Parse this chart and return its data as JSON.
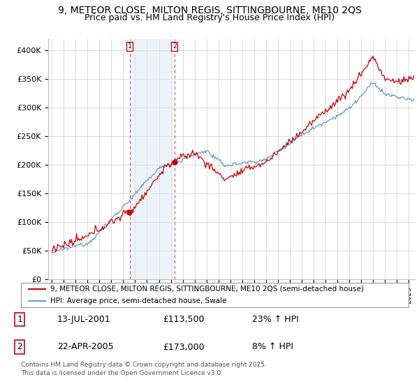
{
  "title": "9, METEOR CLOSE, MILTON REGIS, SITTINGBOURNE, ME10 2QS",
  "subtitle": "Price paid vs. HM Land Registry's House Price Index (HPI)",
  "title_fontsize": 10,
  "subtitle_fontsize": 9,
  "ylim": [
    0,
    420000
  ],
  "yticks": [
    0,
    50000,
    100000,
    150000,
    200000,
    250000,
    300000,
    350000,
    400000
  ],
  "ytick_labels": [
    "£0",
    "£50K",
    "£100K",
    "£150K",
    "£200K",
    "£250K",
    "£300K",
    "£350K",
    "£400K"
  ],
  "red_line_color": "#cc0000",
  "blue_line_color": "#6699cc",
  "blue_fill_color": "#daeaf5",
  "vline_color": "#cc0000",
  "transaction1_x": 2001.54,
  "transaction2_x": 2005.31,
  "transaction1_y": 113500,
  "transaction2_y": 173000,
  "legend_label_red": "9, METEOR CLOSE, MILTON REGIS, SITTINGBOURNE, ME10 2QS (semi-detached house)",
  "legend_label_blue": "HPI: Average price, semi-detached house, Swale",
  "table_rows": [
    [
      "1",
      "13-JUL-2001",
      "£113,500",
      "23% ↑ HPI"
    ],
    [
      "2",
      "22-APR-2005",
      "£173,000",
      "8% ↑ HPI"
    ]
  ],
  "footnote": "Contains HM Land Registry data © Crown copyright and database right 2025.\nThis data is licensed under the Open Government Licence v3.0.",
  "bg_color": "#ffffff",
  "grid_color": "#cccccc",
  "xlim_left": 1994.7,
  "xlim_right": 2025.5
}
